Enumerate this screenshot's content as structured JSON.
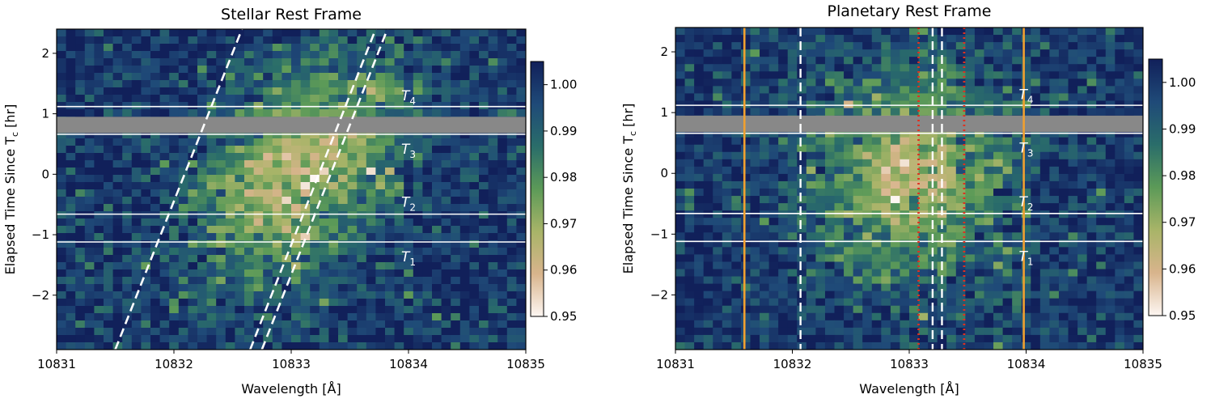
{
  "chart_data": [
    {
      "type": "heatmap",
      "title": "Stellar Rest Frame",
      "xlabel": "Wavelength [Å]",
      "ylabel": "Elapsed Time Since T",
      "ylabel_sub": "c",
      "ylabel_unit": "[hr]",
      "xlim": [
        10831,
        10835
      ],
      "ylim": [
        -2.9,
        2.4
      ],
      "xticks": [
        10831,
        10832,
        10833,
        10834,
        10835
      ],
      "yticks": [
        2,
        1,
        0,
        -1,
        -2
      ],
      "ytick_labels": [
        "2",
        "1",
        "0",
        "−1",
        "−2"
      ],
      "colorbar": {
        "min": 0.95,
        "max": 1.005,
        "ticks": [
          1.0,
          0.99,
          0.98,
          0.97,
          0.96,
          0.95
        ],
        "tick_labels": [
          "1.00",
          "0.99",
          "0.98",
          "0.97",
          "0.96",
          "0.95"
        ],
        "colormap": [
          "#fdf6f2",
          "#d8b48c",
          "#a8b468",
          "#5c9a58",
          "#2a6d6a",
          "#1f4a78",
          "#11205a"
        ]
      },
      "absorption": {
        "center_x": 10833.05,
        "center_y": 0.0,
        "sigma_x": 0.55,
        "sigma_y": 1.3,
        "depth": 0.035,
        "tilt": 0.22
      },
      "gap_band": {
        "y0": 0.68,
        "y1": 0.95,
        "color": "#888888"
      },
      "contact_lines": [
        {
          "y": 1.12,
          "label": "T",
          "sub": "4",
          "label_y": 1.3
        },
        {
          "y": 0.66,
          "label": "T",
          "sub": "3",
          "label_y": 0.42
        },
        {
          "y": -0.66,
          "label": "T",
          "sub": "2",
          "label_y": -0.46
        },
        {
          "y": -1.12,
          "label": "T",
          "sub": "1",
          "label_y": -1.36
        }
      ],
      "contact_label_x": 10834.0,
      "dashed_lines": [
        {
          "x_at_bottom": 10831.5,
          "x_at_top": 10832.58,
          "color": "#ffffff"
        },
        {
          "x_at_bottom": 10832.65,
          "x_at_top": 10833.72,
          "color": "#ffffff"
        },
        {
          "x_at_bottom": 10832.75,
          "x_at_top": 10833.82,
          "color": "#ffffff"
        }
      ],
      "vlines": []
    },
    {
      "type": "heatmap",
      "title": "Planetary Rest Frame",
      "xlabel": "Wavelength [Å]",
      "ylabel": "Elapsed Time Since T",
      "ylabel_sub": "c",
      "ylabel_unit": "[hr]",
      "xlim": [
        10831,
        10835
      ],
      "ylim": [
        -2.9,
        2.4
      ],
      "xticks": [
        10831,
        10832,
        10833,
        10834,
        10835
      ],
      "yticks": [
        2,
        1,
        0,
        -1,
        -2
      ],
      "ytick_labels": [
        "2",
        "1",
        "0",
        "−1",
        "−2"
      ],
      "colorbar": {
        "min": 0.95,
        "max": 1.005,
        "ticks": [
          1.0,
          0.99,
          0.98,
          0.97,
          0.96,
          0.95
        ],
        "tick_labels": [
          "1.00",
          "0.99",
          "0.98",
          "0.97",
          "0.96",
          "0.95"
        ],
        "colormap": [
          "#fdf6f2",
          "#d8b48c",
          "#a8b468",
          "#5c9a58",
          "#2a6d6a",
          "#1f4a78",
          "#11205a"
        ]
      },
      "absorption": {
        "center_x": 10833.0,
        "center_y": 0.0,
        "sigma_x": 0.58,
        "sigma_y": 1.25,
        "depth": 0.033,
        "tilt": 0.0
      },
      "gap_band": {
        "y0": 0.68,
        "y1": 0.95,
        "color": "#888888"
      },
      "contact_lines": [
        {
          "y": 1.12,
          "label": "T",
          "sub": "4",
          "label_y": 1.3
        },
        {
          "y": 0.66,
          "label": "T",
          "sub": "3",
          "label_y": 0.42
        },
        {
          "y": -0.66,
          "label": "T",
          "sub": "2",
          "label_y": -0.46
        },
        {
          "y": -1.12,
          "label": "T",
          "sub": "1",
          "label_y": -1.36
        }
      ],
      "contact_label_x": 10834.0,
      "dashed_lines": [],
      "vlines": [
        {
          "x": 10831.59,
          "style": "solid",
          "color": "#f0a030"
        },
        {
          "x": 10833.98,
          "style": "solid",
          "color": "#f0a030"
        },
        {
          "x": 10832.07,
          "style": "dashed",
          "color": "#ffffff"
        },
        {
          "x": 10833.2,
          "style": "dashed",
          "color": "#ffffff"
        },
        {
          "x": 10833.28,
          "style": "dashed",
          "color": "#ffffff"
        },
        {
          "x": 10833.08,
          "style": "dotted",
          "color": "#e03020"
        },
        {
          "x": 10833.47,
          "style": "dotted",
          "color": "#e03020"
        }
      ]
    }
  ]
}
